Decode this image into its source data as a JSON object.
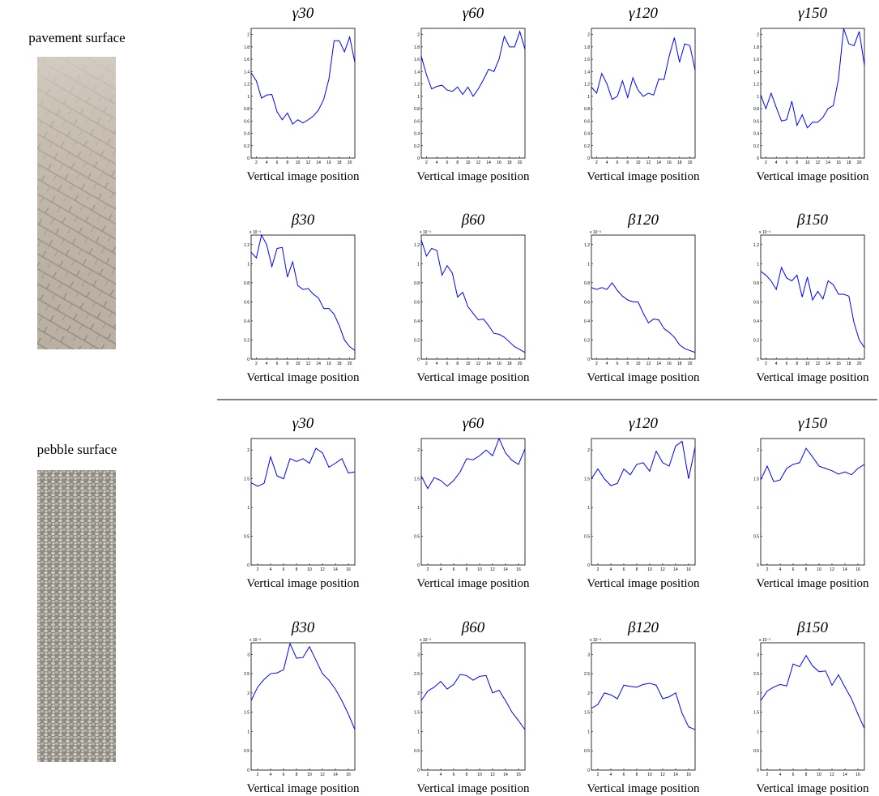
{
  "labels": [
    "pavement surface",
    "pebble surface"
  ],
  "chart_data": [
    {
      "type": "line",
      "title": "γ30",
      "x_label": "Vertical image position",
      "x": [
        1,
        2,
        3,
        4,
        5,
        6,
        7,
        8,
        9,
        10,
        11,
        12,
        13,
        14,
        15,
        16,
        17,
        18,
        19,
        20,
        21
      ],
      "xlim": [
        1,
        21
      ],
      "xticks": [
        2,
        4,
        6,
        8,
        10,
        12,
        14,
        16,
        18,
        20
      ],
      "ylim": [
        0,
        2.1
      ],
      "yticks": [
        0,
        0.2,
        0.4,
        0.6,
        0.8,
        1,
        1.2,
        1.4,
        1.6,
        1.8,
        2
      ],
      "series": [
        {
          "color": "#0000ff",
          "values": [
            1.38,
            1.25,
            0.97,
            1.02,
            1.03,
            0.75,
            0.62,
            0.73,
            0.55,
            0.62,
            0.57,
            0.62,
            0.68,
            0.78,
            0.95,
            1.28,
            1.9,
            1.9,
            1.72,
            1.96,
            1.55
          ]
        }
      ]
    },
    {
      "type": "line",
      "title": "γ60",
      "x_label": "Vertical image position",
      "x": [
        1,
        2,
        3,
        4,
        5,
        6,
        7,
        8,
        9,
        10,
        11,
        12,
        13,
        14,
        15,
        16,
        17,
        18,
        19,
        20,
        21
      ],
      "xlim": [
        1,
        21
      ],
      "xticks": [
        2,
        4,
        6,
        8,
        10,
        12,
        14,
        16,
        18,
        20
      ],
      "ylim": [
        0,
        2.1
      ],
      "yticks": [
        0,
        0.2,
        0.4,
        0.6,
        0.8,
        1,
        1.2,
        1.4,
        1.6,
        1.8,
        2
      ],
      "series": [
        {
          "color": "#0000ff",
          "values": [
            1.65,
            1.35,
            1.12,
            1.16,
            1.18,
            1.1,
            1.08,
            1.15,
            1.03,
            1.15,
            1.0,
            1.12,
            1.27,
            1.44,
            1.4,
            1.6,
            1.97,
            1.8,
            1.8,
            2.05,
            1.76
          ]
        }
      ]
    },
    {
      "type": "line",
      "title": "γ120",
      "x_label": "Vertical image position",
      "x": [
        1,
        2,
        3,
        4,
        5,
        6,
        7,
        8,
        9,
        10,
        11,
        12,
        13,
        14,
        15,
        16,
        17,
        18,
        19,
        20,
        21
      ],
      "xlim": [
        1,
        21
      ],
      "xticks": [
        2,
        4,
        6,
        8,
        10,
        12,
        14,
        16,
        18,
        20
      ],
      "ylim": [
        0,
        2.1
      ],
      "yticks": [
        0,
        0.2,
        0.4,
        0.6,
        0.8,
        1,
        1.2,
        1.4,
        1.6,
        1.8,
        2
      ],
      "series": [
        {
          "color": "#0000ff",
          "values": [
            1.15,
            1.05,
            1.37,
            1.2,
            0.95,
            1.0,
            1.25,
            0.98,
            1.3,
            1.1,
            1.0,
            1.05,
            1.02,
            1.28,
            1.27,
            1.65,
            1.95,
            1.55,
            1.85,
            1.82,
            1.42
          ]
        }
      ]
    },
    {
      "type": "line",
      "title": "γ150",
      "x_label": "Vertical image position",
      "x": [
        1,
        2,
        3,
        4,
        5,
        6,
        7,
        8,
        9,
        10,
        11,
        12,
        13,
        14,
        15,
        16,
        17,
        18,
        19,
        20,
        21
      ],
      "xlim": [
        1,
        21
      ],
      "xticks": [
        2,
        4,
        6,
        8,
        10,
        12,
        14,
        16,
        18,
        20
      ],
      "ylim": [
        0,
        2.1
      ],
      "yticks": [
        0,
        0.2,
        0.4,
        0.6,
        0.8,
        1,
        1.2,
        1.4,
        1.6,
        1.8,
        2
      ],
      "series": [
        {
          "color": "#0000ff",
          "values": [
            1.02,
            0.8,
            1.05,
            0.82,
            0.6,
            0.62,
            0.92,
            0.53,
            0.7,
            0.49,
            0.58,
            0.58,
            0.66,
            0.8,
            0.85,
            1.28,
            2.1,
            1.85,
            1.82,
            2.05,
            1.5
          ]
        }
      ]
    },
    {
      "type": "line",
      "title": "β30",
      "x_label": "Vertical image position",
      "y_scale_label": "x 10⁻³",
      "x": [
        1,
        2,
        3,
        4,
        5,
        6,
        7,
        8,
        9,
        10,
        11,
        12,
        13,
        14,
        15,
        16,
        17,
        18,
        19,
        20,
        21
      ],
      "xlim": [
        1,
        21
      ],
      "xticks": [
        2,
        4,
        6,
        8,
        10,
        12,
        14,
        16,
        18,
        20
      ],
      "ylim": [
        0,
        1.3
      ],
      "yticks": [
        0,
        0.2,
        0.4,
        0.6,
        0.8,
        1,
        1.2
      ],
      "series": [
        {
          "color": "#0000ff",
          "values": [
            1.12,
            1.06,
            1.3,
            1.2,
            0.97,
            1.16,
            1.17,
            0.86,
            1.02,
            0.77,
            0.73,
            0.74,
            0.68,
            0.64,
            0.53,
            0.53,
            0.47,
            0.35,
            0.2,
            0.13,
            0.09
          ]
        }
      ]
    },
    {
      "type": "line",
      "title": "β60",
      "x_label": "Vertical image position",
      "y_scale_label": "x 10⁻³",
      "x": [
        1,
        2,
        3,
        4,
        5,
        6,
        7,
        8,
        9,
        10,
        11,
        12,
        13,
        14,
        15,
        16,
        17,
        18,
        19,
        20,
        21
      ],
      "xlim": [
        1,
        21
      ],
      "xticks": [
        2,
        4,
        6,
        8,
        10,
        12,
        14,
        16,
        18,
        20
      ],
      "ylim": [
        0,
        1.3
      ],
      "yticks": [
        0,
        0.2,
        0.4,
        0.6,
        0.8,
        1,
        1.2
      ],
      "series": [
        {
          "color": "#0000ff",
          "values": [
            1.25,
            1.08,
            1.16,
            1.14,
            0.88,
            0.98,
            0.9,
            0.65,
            0.7,
            0.55,
            0.48,
            0.41,
            0.42,
            0.35,
            0.27,
            0.26,
            0.23,
            0.18,
            0.13,
            0.1,
            0.07
          ]
        }
      ]
    },
    {
      "type": "line",
      "title": "β120",
      "x_label": "Vertical image position",
      "y_scale_label": "x 10⁻³",
      "x": [
        1,
        2,
        3,
        4,
        5,
        6,
        7,
        8,
        9,
        10,
        11,
        12,
        13,
        14,
        15,
        16,
        17,
        18,
        19,
        20,
        21
      ],
      "xlim": [
        1,
        21
      ],
      "xticks": [
        2,
        4,
        6,
        8,
        10,
        12,
        14,
        16,
        18,
        20
      ],
      "ylim": [
        0,
        1.3
      ],
      "yticks": [
        0,
        0.2,
        0.4,
        0.6,
        0.8,
        1,
        1.2
      ],
      "series": [
        {
          "color": "#0000ff",
          "values": [
            0.75,
            0.73,
            0.75,
            0.73,
            0.8,
            0.72,
            0.66,
            0.62,
            0.6,
            0.6,
            0.48,
            0.38,
            0.42,
            0.41,
            0.32,
            0.28,
            0.23,
            0.15,
            0.11,
            0.09,
            0.07
          ]
        }
      ]
    },
    {
      "type": "line",
      "title": "β150",
      "x_label": "Vertical image position",
      "y_scale_label": "x 10⁻³",
      "x": [
        1,
        2,
        3,
        4,
        5,
        6,
        7,
        8,
        9,
        10,
        11,
        12,
        13,
        14,
        15,
        16,
        17,
        18,
        19,
        20,
        21
      ],
      "xlim": [
        1,
        21
      ],
      "xticks": [
        2,
        4,
        6,
        8,
        10,
        12,
        14,
        16,
        18,
        20
      ],
      "ylim": [
        0,
        1.3
      ],
      "yticks": [
        0,
        0.2,
        0.4,
        0.6,
        0.8,
        1,
        1.2
      ],
      "series": [
        {
          "color": "#0000ff",
          "values": [
            0.92,
            0.88,
            0.82,
            0.73,
            0.96,
            0.85,
            0.82,
            0.88,
            0.65,
            0.86,
            0.62,
            0.71,
            0.63,
            0.82,
            0.78,
            0.68,
            0.68,
            0.66,
            0.38,
            0.2,
            0.12
          ]
        }
      ]
    },
    {
      "type": "line",
      "title": "γ30",
      "x_label": "Vertical image position",
      "x": [
        1,
        2,
        3,
        4,
        5,
        6,
        7,
        8,
        9,
        10,
        11,
        12,
        13,
        14,
        15,
        16,
        17
      ],
      "xlim": [
        1,
        17
      ],
      "xticks": [
        2,
        4,
        6,
        8,
        10,
        12,
        14,
        16
      ],
      "ylim": [
        0,
        2.2
      ],
      "yticks": [
        0,
        0.5,
        1,
        1.5,
        2
      ],
      "series": [
        {
          "color": "#0000ff",
          "values": [
            1.43,
            1.37,
            1.42,
            1.88,
            1.55,
            1.5,
            1.85,
            1.8,
            1.85,
            1.77,
            2.03,
            1.95,
            1.7,
            1.77,
            1.85,
            1.6,
            1.62
          ]
        }
      ]
    },
    {
      "type": "line",
      "title": "γ60",
      "x_label": "Vertical image position",
      "x": [
        1,
        2,
        3,
        4,
        5,
        6,
        7,
        8,
        9,
        10,
        11,
        12,
        13,
        14,
        15,
        16,
        17
      ],
      "xlim": [
        1,
        17
      ],
      "xticks": [
        2,
        4,
        6,
        8,
        10,
        12,
        14,
        16
      ],
      "ylim": [
        0,
        2.2
      ],
      "yticks": [
        0,
        0.5,
        1,
        1.5,
        2
      ],
      "series": [
        {
          "color": "#0000ff",
          "values": [
            1.55,
            1.33,
            1.52,
            1.47,
            1.37,
            1.47,
            1.62,
            1.85,
            1.83,
            1.9,
            2.0,
            1.9,
            2.2,
            1.95,
            1.82,
            1.75,
            2.02
          ]
        }
      ]
    },
    {
      "type": "line",
      "title": "γ120",
      "x_label": "Vertical image position",
      "x": [
        1,
        2,
        3,
        4,
        5,
        6,
        7,
        8,
        9,
        10,
        11,
        12,
        13,
        14,
        15,
        16,
        17
      ],
      "xlim": [
        1,
        17
      ],
      "xticks": [
        2,
        4,
        6,
        8,
        10,
        12,
        14,
        16
      ],
      "ylim": [
        0,
        2.2
      ],
      "yticks": [
        0,
        0.5,
        1,
        1.5,
        2
      ],
      "series": [
        {
          "color": "#0000ff",
          "values": [
            1.5,
            1.67,
            1.5,
            1.38,
            1.42,
            1.67,
            1.57,
            1.75,
            1.78,
            1.63,
            1.98,
            1.78,
            1.72,
            2.07,
            2.15,
            1.5,
            2.05
          ]
        }
      ]
    },
    {
      "type": "line",
      "title": "γ150",
      "x_label": "Vertical image position",
      "x": [
        1,
        2,
        3,
        4,
        5,
        6,
        7,
        8,
        9,
        10,
        11,
        12,
        13,
        14,
        15,
        16,
        17
      ],
      "xlim": [
        1,
        17
      ],
      "xticks": [
        2,
        4,
        6,
        8,
        10,
        12,
        14,
        16
      ],
      "ylim": [
        0,
        2.2
      ],
      "yticks": [
        0,
        0.5,
        1,
        1.5,
        2
      ],
      "series": [
        {
          "color": "#0000ff",
          "values": [
            1.48,
            1.72,
            1.45,
            1.48,
            1.68,
            1.75,
            1.78,
            2.03,
            1.88,
            1.72,
            1.68,
            1.64,
            1.58,
            1.62,
            1.57,
            1.68,
            1.75
          ]
        }
      ]
    },
    {
      "type": "line",
      "title": "β30",
      "x_label": "Vertical image position",
      "y_scale_label": "x 10⁻³",
      "x": [
        1,
        2,
        3,
        4,
        5,
        6,
        7,
        8,
        9,
        10,
        11,
        12,
        13,
        14,
        15,
        16,
        17
      ],
      "xlim": [
        1,
        17
      ],
      "xticks": [
        2,
        4,
        6,
        8,
        10,
        12,
        14,
        16
      ],
      "ylim": [
        0,
        3.3
      ],
      "yticks": [
        0,
        0.5,
        1,
        1.5,
        2,
        2.5,
        3
      ],
      "series": [
        {
          "color": "#0000ff",
          "values": [
            1.8,
            2.15,
            2.35,
            2.5,
            2.52,
            2.6,
            3.28,
            2.9,
            2.92,
            3.2,
            2.85,
            2.5,
            2.33,
            2.1,
            1.8,
            1.45,
            1.05
          ]
        }
      ]
    },
    {
      "type": "line",
      "title": "β60",
      "x_label": "Vertical image position",
      "y_scale_label": "x 10⁻³",
      "x": [
        1,
        2,
        3,
        4,
        5,
        6,
        7,
        8,
        9,
        10,
        11,
        12,
        13,
        14,
        15,
        16,
        17
      ],
      "xlim": [
        1,
        17
      ],
      "xticks": [
        2,
        4,
        6,
        8,
        10,
        12,
        14,
        16
      ],
      "ylim": [
        0,
        3.3
      ],
      "yticks": [
        0,
        0.5,
        1,
        1.5,
        2,
        2.5,
        3
      ],
      "series": [
        {
          "color": "#0000ff",
          "values": [
            1.8,
            2.05,
            2.15,
            2.3,
            2.1,
            2.22,
            2.48,
            2.45,
            2.33,
            2.43,
            2.45,
            2.0,
            2.07,
            1.8,
            1.5,
            1.28,
            1.05
          ]
        }
      ]
    },
    {
      "type": "line",
      "title": "β120",
      "x_label": "Vertical image position",
      "y_scale_label": "x 10⁻³",
      "x": [
        1,
        2,
        3,
        4,
        5,
        6,
        7,
        8,
        9,
        10,
        11,
        12,
        13,
        14,
        15,
        16,
        17
      ],
      "xlim": [
        1,
        17
      ],
      "xticks": [
        2,
        4,
        6,
        8,
        10,
        12,
        14,
        16
      ],
      "ylim": [
        0,
        3.3
      ],
      "yticks": [
        0,
        0.5,
        1,
        1.5,
        2,
        2.5,
        3
      ],
      "series": [
        {
          "color": "#0000ff",
          "values": [
            1.6,
            1.7,
            2.0,
            1.95,
            1.85,
            2.2,
            2.17,
            2.15,
            2.22,
            2.25,
            2.2,
            1.85,
            1.9,
            2.0,
            1.47,
            1.12,
            1.05
          ]
        }
      ]
    },
    {
      "type": "line",
      "title": "β150",
      "x_label": "Vertical image position",
      "y_scale_label": "x 10⁻³",
      "x": [
        1,
        2,
        3,
        4,
        5,
        6,
        7,
        8,
        9,
        10,
        11,
        12,
        13,
        14,
        15,
        16,
        17
      ],
      "xlim": [
        1,
        17
      ],
      "xticks": [
        2,
        4,
        6,
        8,
        10,
        12,
        14,
        16
      ],
      "ylim": [
        0,
        3.3
      ],
      "yticks": [
        0,
        0.5,
        1,
        1.5,
        2,
        2.5,
        3
      ],
      "series": [
        {
          "color": "#0000ff",
          "values": [
            1.8,
            2.05,
            2.15,
            2.22,
            2.18,
            2.75,
            2.68,
            2.97,
            2.7,
            2.55,
            2.57,
            2.2,
            2.47,
            2.15,
            1.85,
            1.45,
            1.08
          ]
        }
      ]
    }
  ]
}
